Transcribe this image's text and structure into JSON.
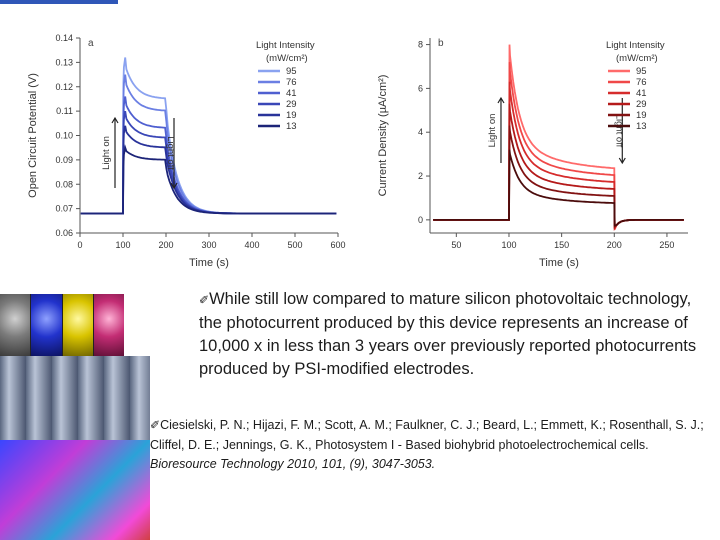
{
  "text": {
    "bullet_symbol": "✐",
    "body": "While still low compared to mature silicon photovoltaic technology, the photocurrent produced by this device represents an increase of 10,000 x in less than 3 years over previously reported photocurrents produced by PSI-modified electrodes.",
    "citation_main": "Ciesielski, P. N.; Hijazi, F. M.; Scott, A. M.; Faulkner, C. J.; Beard, L.; Emmett, K.; Rosenthall, S. J.; Cliffel, D. E.; Jennings, G. K., Photosystem I - Based biohybrid photoelectrochemical cells.",
    "citation_journal": "Bioresource Technology 2010, 101, (9), 3047-3053."
  },
  "colors": {
    "topbar": "#2f57b8",
    "blues": [
      "#8aa2f0",
      "#6b7fe3",
      "#4f5fd0",
      "#3a47b7",
      "#29339a",
      "#1c2478"
    ],
    "reds": [
      "#ff6a6a",
      "#f04848",
      "#d62c2c",
      "#b51a1a",
      "#821212",
      "#4b0c0c"
    ]
  },
  "chart_data": [
    {
      "type": "line",
      "panel_label": "a",
      "xlabel": "Time (s)",
      "ylabel": "Open Circuit Potential (V)",
      "xlim": [
        0,
        600
      ],
      "ylim": [
        0.06,
        0.14
      ],
      "xticks": [
        0,
        100,
        200,
        300,
        400,
        500,
        600
      ],
      "yticks": [
        "0.06",
        "0.07",
        "0.08",
        "0.09",
        "0.10",
        "0.11",
        "0.12",
        "0.13",
        "0.14"
      ],
      "legend_title": "Light Intensity",
      "legend_units": "(mW/cm²)",
      "legend_location": "top-right",
      "annotations": {
        "light_on": "Light on",
        "light_off": "Light off"
      },
      "light_on_time": 100,
      "light_off_time": 200,
      "baseline": 0.068,
      "series": [
        {
          "name": "95",
          "peak": 0.132,
          "pre_off": 0.115
        },
        {
          "name": "76",
          "peak": 0.125,
          "pre_off": 0.11
        },
        {
          "name": "41",
          "peak": 0.116,
          "pre_off": 0.103
        },
        {
          "name": "29",
          "peak": 0.11,
          "pre_off": 0.099
        },
        {
          "name": "19",
          "peak": 0.104,
          "pre_off": 0.095
        },
        {
          "name": "13",
          "peak": 0.095,
          "pre_off": 0.09
        }
      ]
    },
    {
      "type": "line",
      "panel_label": "b",
      "xlabel": "Time (s)",
      "ylabel": "Current Density (µA/cm²)",
      "xlim": [
        25,
        270
      ],
      "ylim": [
        -0.6,
        8.3
      ],
      "xticks": [
        50,
        100,
        150,
        200,
        250
      ],
      "yticks": [
        "0",
        "2",
        "4",
        "6",
        "8"
      ],
      "legend_title": "Light Intensity",
      "legend_units": "(mW/cm²)",
      "legend_location": "top-right",
      "annotations": {
        "light_on": "Light on",
        "light_off": "Light off"
      },
      "light_on_time": 100,
      "light_off_time": 200,
      "series": [
        {
          "name": "95",
          "peak": 8.0,
          "pre_off": 2.2
        },
        {
          "name": "76",
          "peak": 7.2,
          "pre_off": 1.9
        },
        {
          "name": "41",
          "peak": 6.3,
          "pre_off": 1.6
        },
        {
          "name": "29",
          "peak": 5.3,
          "pre_off": 1.3
        },
        {
          "name": "19",
          "peak": 4.3,
          "pre_off": 1.0
        },
        {
          "name": "13",
          "peak": 3.2,
          "pre_off": 0.7
        }
      ]
    }
  ]
}
